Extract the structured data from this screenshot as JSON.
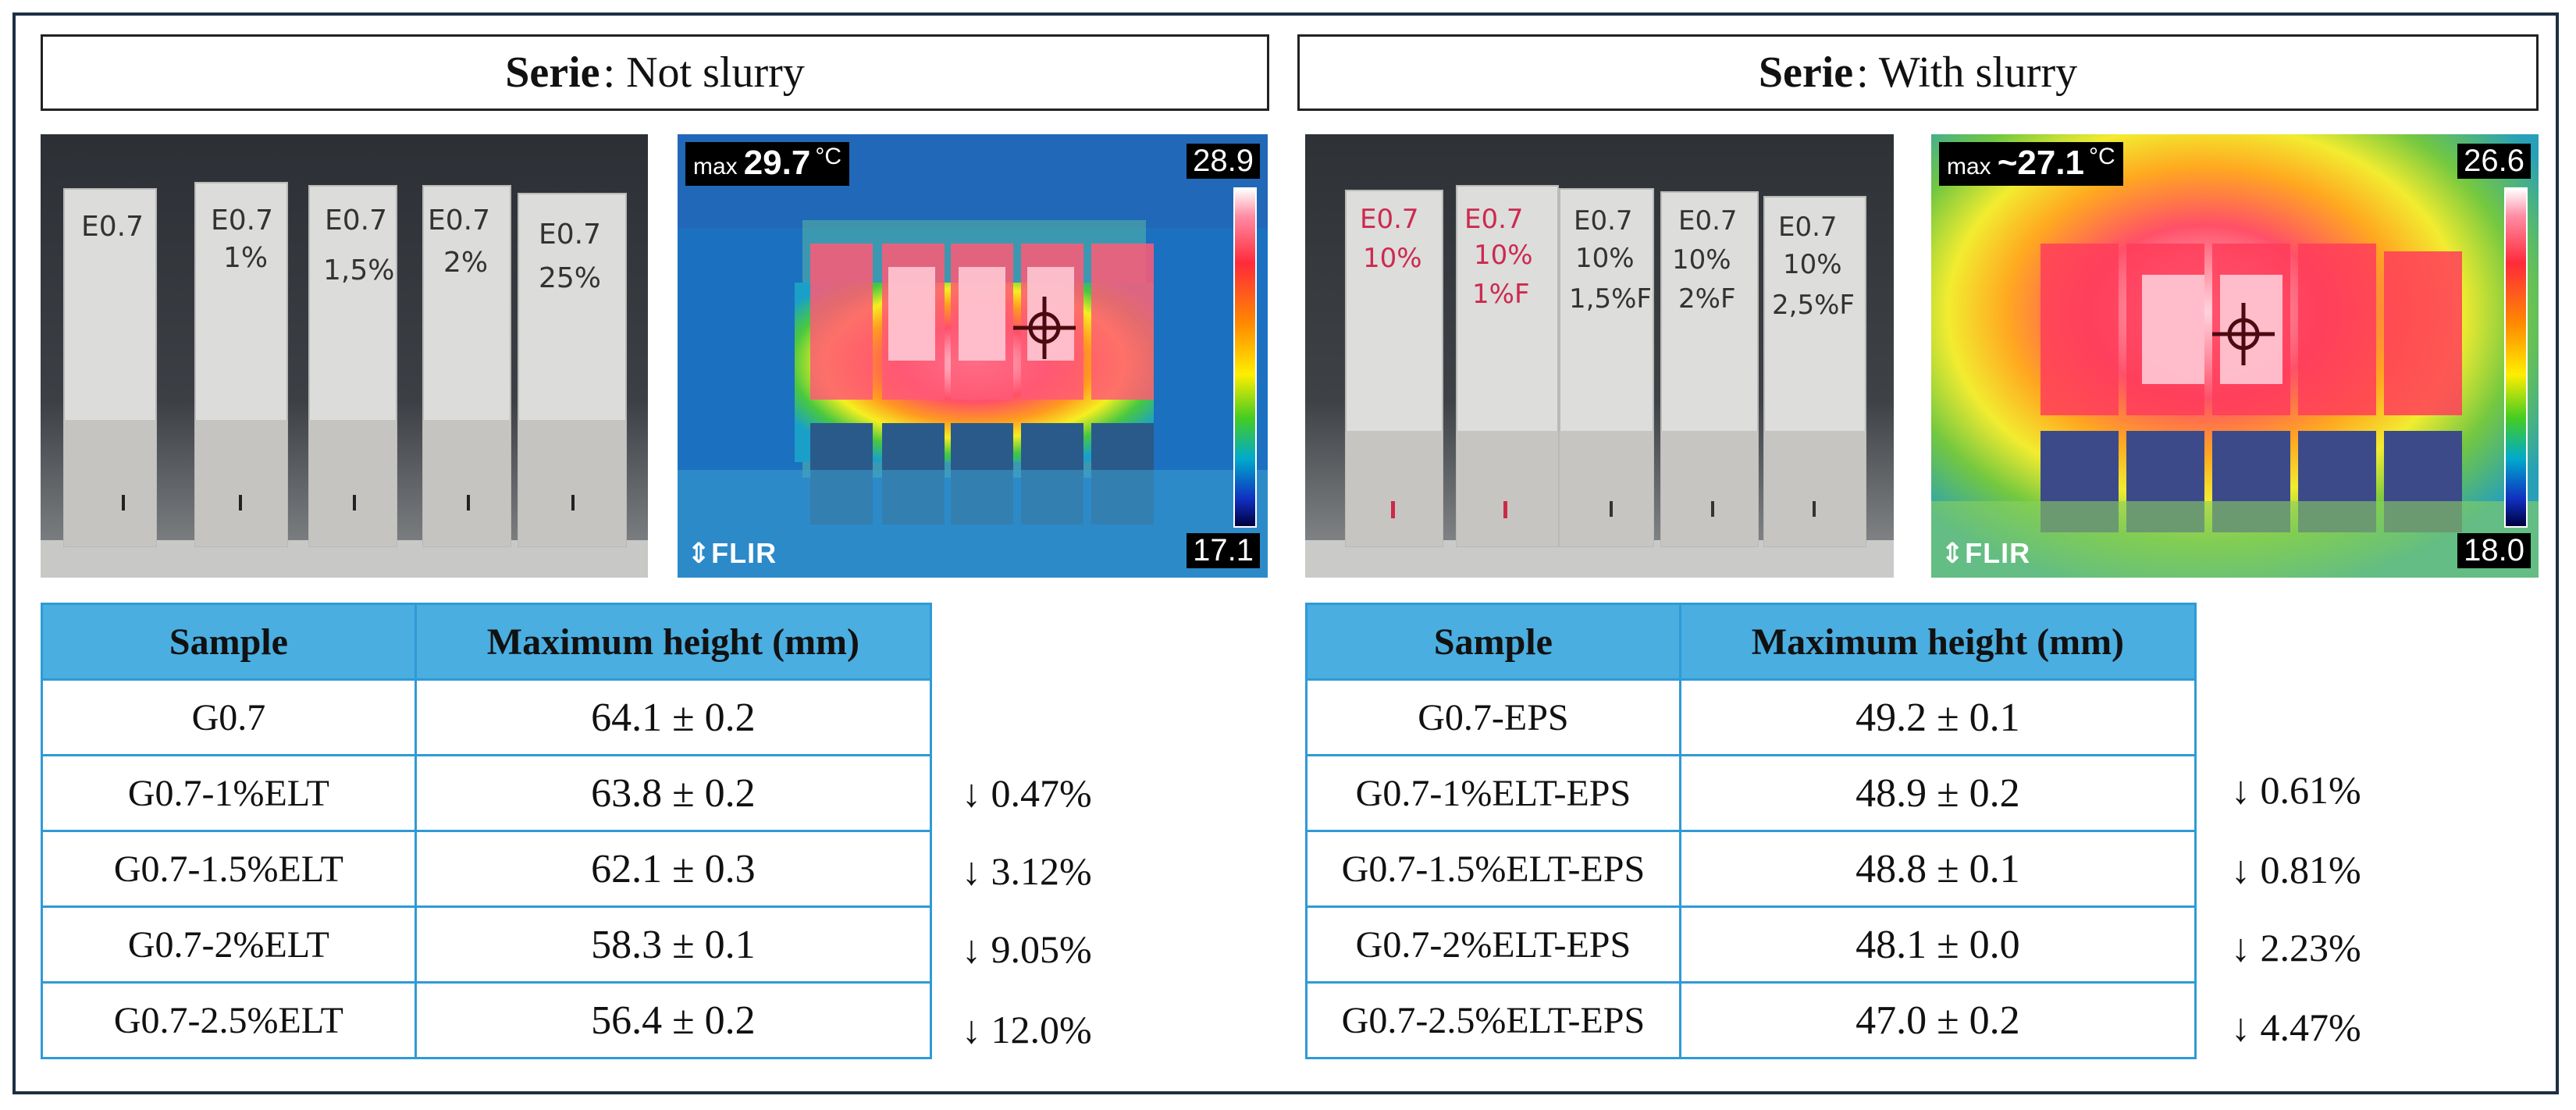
{
  "left": {
    "serie_label": "Serie",
    "serie_value": ": Not slurry",
    "thermal": {
      "max_label": "max",
      "max_value": "29.7",
      "unit": "°C",
      "scale_high": "28.9",
      "scale_low": "17.1",
      "brand": "FLIR"
    },
    "table": {
      "headers": [
        "Sample",
        "Maximum height (mm)"
      ],
      "rows": [
        {
          "sample": "G0.7",
          "height": "64.1 ± 0.2",
          "reduction": ""
        },
        {
          "sample": "G0.7-1%ELT",
          "height": "63.8 ± 0.2",
          "reduction": "↓ 0.47%"
        },
        {
          "sample": "G0.7-1.5%ELT",
          "height": "62.1 ± 0.3",
          "reduction": "↓ 3.12%"
        },
        {
          "sample": "G0.7-2%ELT",
          "height": "58.3 ± 0.1",
          "reduction": "↓ 9.05%"
        },
        {
          "sample": "G0.7-2.5%ELT",
          "height": "56.4 ± 0.2",
          "reduction": "↓ 12.0%"
        }
      ]
    },
    "photo_labels": [
      "E0.7",
      "E0.7 1%",
      "E0.7 1,5%",
      "E0.7 2%",
      "E0.7 2,5%"
    ]
  },
  "right": {
    "serie_label": "Serie",
    "serie_value": ": With slurry",
    "thermal": {
      "max_label": "max",
      "max_value": "~27.1",
      "unit": "°C",
      "scale_high": "26.6",
      "scale_low": "18.0",
      "brand": "FLIR"
    },
    "table": {
      "headers": [
        "Sample",
        "Maximum height (mm)"
      ],
      "rows": [
        {
          "sample": "G0.7-EPS",
          "height": "49.2 ± 0.1",
          "reduction": ""
        },
        {
          "sample": "G0.7-1%ELT-EPS",
          "height": "48.9 ± 0.2",
          "reduction": "↓ 0.61%"
        },
        {
          "sample": "G0.7-1.5%ELT-EPS",
          "height": "48.8 ± 0.1",
          "reduction": "↓ 0.81%"
        },
        {
          "sample": "G0.7-2%ELT-EPS",
          "height": "48.1 ± 0.0",
          "reduction": "↓ 2.23%"
        },
        {
          "sample": "G0.7-2.5%ELT-EPS",
          "height": "47.0 ± 0.2",
          "reduction": "↓ 4.47%"
        }
      ]
    },
    "photo_labels": [
      "E0.7 10%",
      "E0.7 10% 1%F",
      "E0.7 10% 1,5%F",
      "E0.7 10% 2%F",
      "E0.7 10% 2,5%F"
    ]
  }
}
